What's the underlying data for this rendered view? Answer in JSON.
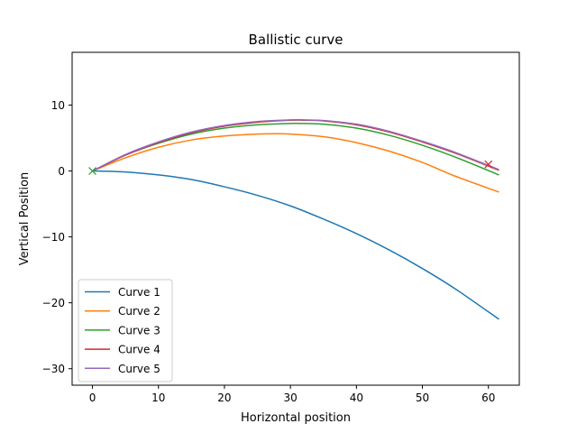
{
  "chart_data": {
    "type": "line",
    "title": "Ballistic curve",
    "xlabel": "Horizontal position",
    "ylabel": "Vertical Position",
    "xlim": [
      -3.08,
      64.68
    ],
    "ylim": [
      -32.5,
      18.0
    ],
    "xticks": [
      0,
      10,
      20,
      30,
      40,
      50,
      60
    ],
    "yticks": [
      -30,
      -20,
      -10,
      0,
      10
    ],
    "legend_location": "lower left",
    "grid": false,
    "series": [
      {
        "name": "Curve 1",
        "color": "#1f77b4",
        "x": [
          0,
          5,
          10,
          15,
          20,
          25,
          30,
          35,
          40,
          45,
          50,
          55,
          61.6
        ],
        "y": [
          0,
          -0.15,
          -0.6,
          -1.3,
          -2.4,
          -3.7,
          -5.3,
          -7.3,
          -9.5,
          -12.0,
          -14.8,
          -17.9,
          -22.5
        ]
      },
      {
        "name": "Curve 2",
        "color": "#ff7f0e",
        "x": [
          0,
          5,
          10,
          15,
          20,
          25,
          28,
          30,
          35,
          40,
          45,
          50,
          55,
          61.6
        ],
        "y": [
          0,
          2.0,
          3.6,
          4.7,
          5.3,
          5.6,
          5.65,
          5.6,
          5.2,
          4.3,
          3.0,
          1.3,
          -0.8,
          -3.2
        ]
      },
      {
        "name": "Curve 3",
        "color": "#2ca02c",
        "x": [
          0,
          5,
          10,
          15,
          20,
          25,
          30,
          32,
          35,
          40,
          45,
          50,
          55,
          61.6
        ],
        "y": [
          0,
          2.4,
          4.2,
          5.6,
          6.5,
          7.0,
          7.2,
          7.2,
          7.1,
          6.5,
          5.4,
          3.9,
          2.1,
          -0.6
        ]
      },
      {
        "name": "Curve 4",
        "color": "#d62728",
        "x": [
          0,
          5,
          10,
          15,
          20,
          25,
          30,
          32,
          35,
          40,
          45,
          50,
          55,
          61.6
        ],
        "y": [
          0,
          2.4,
          4.3,
          5.8,
          6.8,
          7.4,
          7.7,
          7.7,
          7.6,
          7.0,
          5.9,
          4.4,
          2.7,
          0.1
        ]
      },
      {
        "name": "Curve 5",
        "color": "#9467bd",
        "x": [
          0,
          5,
          10,
          15,
          20,
          25,
          30,
          32,
          35,
          40,
          45,
          50,
          55,
          61.6
        ],
        "y": [
          0,
          2.5,
          4.4,
          5.9,
          6.9,
          7.5,
          7.75,
          7.75,
          7.65,
          7.1,
          6.0,
          4.5,
          2.8,
          0.2
        ]
      }
    ],
    "markers": [
      {
        "symbol": "x",
        "color": "#2ca02c",
        "x": 0,
        "y": 0
      },
      {
        "symbol": "x",
        "color": "#d62728",
        "x": 60,
        "y": 1.0
      }
    ]
  }
}
